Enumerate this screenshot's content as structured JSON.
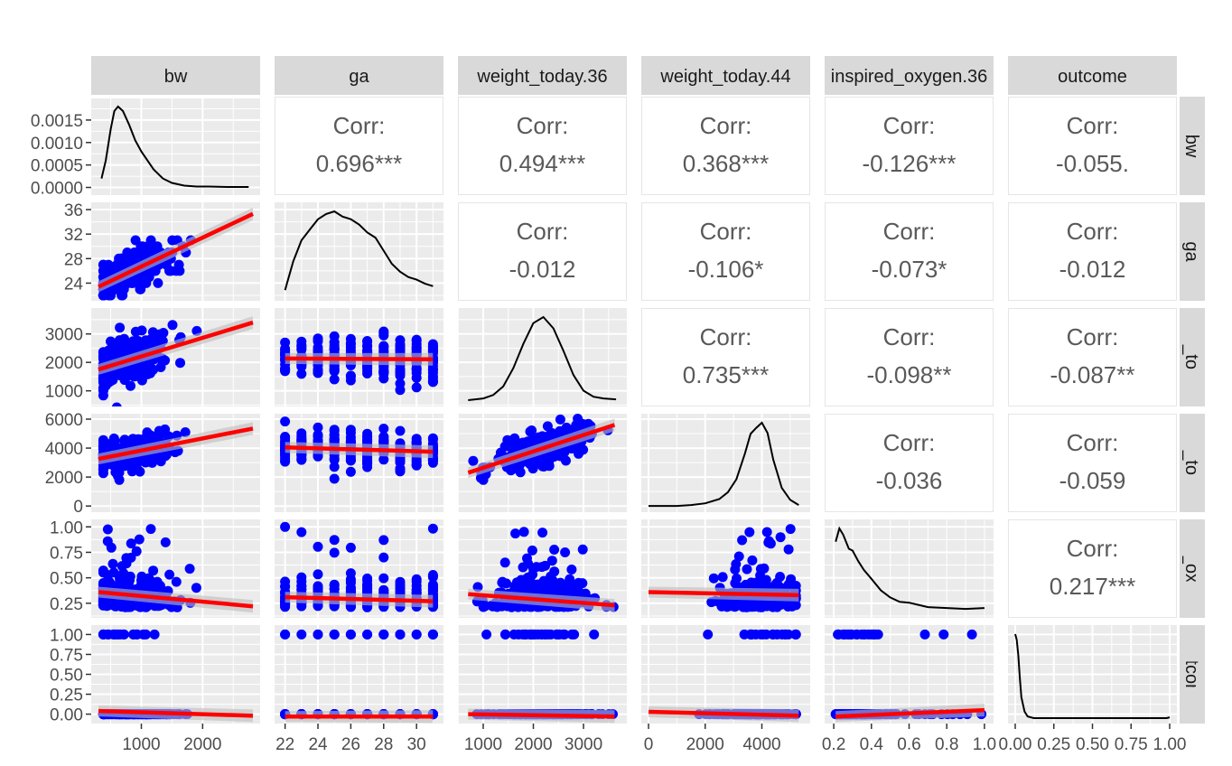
{
  "variables": [
    "bw",
    "ga",
    "weight_today.36",
    "weight_today.44",
    "inspired_oxygen.36",
    "outcome"
  ],
  "colors": {
    "panel_bg": "#EBEBEB",
    "grid": "#FFFFFF",
    "strip_bg": "#D9D9D9",
    "points": "#0000FF",
    "fit_line": "#FF0000",
    "ci_band": "#BDBDBD",
    "density_line": "#000000",
    "corr_text": "#595959",
    "tick_text": "#4D4D4D"
  },
  "chart_data": {
    "type": "scatter",
    "layout": "pairs-matrix",
    "lower": "scatter points with red linear fit and grey confidence band",
    "diagonal": "density curve",
    "upper": "correlation text",
    "corr_label": "Corr:",
    "correlations": [
      {
        "row": "bw",
        "col": "ga",
        "value": "0.696***"
      },
      {
        "row": "bw",
        "col": "weight_today.36",
        "value": "0.494***"
      },
      {
        "row": "bw",
        "col": "weight_today.44",
        "value": "0.368***"
      },
      {
        "row": "bw",
        "col": "inspired_oxygen.36",
        "value": "-0.126***"
      },
      {
        "row": "bw",
        "col": "outcome",
        "value": "-0.055."
      },
      {
        "row": "ga",
        "col": "weight_today.36",
        "value": "-0.012"
      },
      {
        "row": "ga",
        "col": "weight_today.44",
        "value": "-0.106*"
      },
      {
        "row": "ga",
        "col": "inspired_oxygen.36",
        "value": "-0.073*"
      },
      {
        "row": "ga",
        "col": "outcome",
        "value": "-0.012"
      },
      {
        "row": "weight_today.36",
        "col": "weight_today.44",
        "value": "0.735***"
      },
      {
        "row": "weight_today.36",
        "col": "inspired_oxygen.36",
        "value": "-0.098**"
      },
      {
        "row": "weight_today.36",
        "col": "outcome",
        "value": "-0.087**"
      },
      {
        "row": "weight_today.44",
        "col": "inspired_oxygen.36",
        "value": "-0.036"
      },
      {
        "row": "weight_today.44",
        "col": "outcome",
        "value": "-0.059"
      },
      {
        "row": "inspired_oxygen.36",
        "col": "outcome",
        "value": "0.217***"
      }
    ],
    "axes": {
      "bw": {
        "range": [
          300,
          2820
        ],
        "ticks": [
          1000,
          2000
        ],
        "tick_labels": [
          "1000",
          "2000"
        ]
      },
      "ga": {
        "range": [
          21.8,
          31.2
        ],
        "ticks": [
          22,
          24,
          26,
          28,
          30
        ],
        "tick_labels": [
          "22",
          "24",
          "26",
          "28",
          "30"
        ]
      },
      "weight_today.36": {
        "range": [
          640,
          3720
        ],
        "ticks": [
          1000,
          2000,
          3000
        ],
        "tick_labels": [
          "1000",
          "2000",
          "3000"
        ]
      },
      "weight_today.44": {
        "range": [
          0,
          5450
        ],
        "ticks": [
          0,
          2000,
          4000
        ],
        "tick_labels": [
          "0",
          "2000",
          "4000"
        ]
      },
      "inspired_oxygen.36": {
        "range": [
          0.19,
          1.01
        ],
        "ticks": [
          0.2,
          0.4,
          0.6,
          0.8,
          1.0
        ],
        "tick_labels": [
          "0.2",
          "0.4",
          "0.6",
          "0.8",
          "1.0"
        ]
      },
      "outcome": {
        "range": [
          0,
          1
        ],
        "ticks": [
          0,
          0.25,
          0.5,
          0.75,
          1.0
        ],
        "tick_labels": [
          "0.00",
          "0.25",
          "0.50",
          "0.75",
          "1.00"
        ]
      }
    },
    "row1_density_axis": {
      "range": [
        -5e-05,
        0.0019
      ],
      "ticks": [
        0,
        0.0005,
        0.001,
        0.0015
      ],
      "tick_labels": [
        "0.0000",
        "0.0005",
        "0.0010",
        "0.0015"
      ]
    },
    "row_axes": {
      "ga": {
        "range": [
          22,
          36.3
        ],
        "ticks": [
          24,
          28,
          32,
          36
        ],
        "tick_labels": [
          "24",
          "28",
          "32",
          "36"
        ]
      },
      "weight_today.36": {
        "range": [
          640,
          3720
        ],
        "ticks": [
          1000,
          2000,
          3000
        ],
        "tick_labels": [
          "1000",
          "2000",
          "3000"
        ]
      },
      "weight_today.44": {
        "range": [
          -50,
          6000
        ],
        "ticks": [
          0,
          2000,
          4000,
          6000
        ],
        "tick_labels": [
          "0",
          "2000",
          "4000",
          "6000"
        ]
      },
      "inspired_oxygen.36": {
        "range": [
          0.16,
          1.02
        ],
        "ticks": [
          0.25,
          0.5,
          0.75,
          1.0
        ],
        "tick_labels": [
          "0.25",
          "0.50",
          "0.75",
          "1.00"
        ]
      },
      "outcome": {
        "range": [
          -0.05,
          1.05
        ],
        "ticks": [
          0,
          0.25,
          0.5,
          0.75,
          1.0
        ],
        "tick_labels": [
          "0.00",
          "0.25",
          "0.50",
          "0.75",
          "1.00"
        ]
      }
    },
    "densities": {
      "bw": {
        "x": [
          350,
          420,
          500,
          560,
          620,
          700,
          800,
          900,
          1000,
          1100,
          1200,
          1350,
          1500,
          1700,
          1900,
          2100,
          2400,
          2750
        ],
        "y": [
          0.0002,
          0.0006,
          0.0013,
          0.0017,
          0.0018,
          0.0017,
          0.0014,
          0.00105,
          0.0008,
          0.0006,
          0.0004,
          0.0002,
          0.0001,
          4e-05,
          2e-05,
          2e-05,
          1e-05,
          1e-05
        ]
      },
      "ga": {
        "x": [
          22,
          22.5,
          23,
          23.5,
          24,
          24.5,
          25,
          25.5,
          26,
          26.5,
          27,
          27.5,
          28,
          28.5,
          29,
          29.5,
          30,
          30.5,
          31
        ],
        "y": [
          0.02,
          0.13,
          0.21,
          0.25,
          0.29,
          0.31,
          0.32,
          0.3,
          0.29,
          0.27,
          0.24,
          0.22,
          0.17,
          0.12,
          0.09,
          0.07,
          0.06,
          0.045,
          0.035
        ]
      },
      "weight_today.36": {
        "x": [
          700,
          1000,
          1200,
          1400,
          1600,
          1800,
          2000,
          2200,
          2400,
          2600,
          2800,
          3000,
          3200,
          3400,
          3650
        ],
        "y": [
          0.01,
          0.03,
          0.07,
          0.17,
          0.38,
          0.66,
          0.9,
          0.97,
          0.84,
          0.58,
          0.3,
          0.12,
          0.05,
          0.03,
          0.02
        ]
      },
      "weight_today.44": {
        "x": [
          0,
          500,
          1000,
          1500,
          2000,
          2500,
          2800,
          3100,
          3400,
          3600,
          3800,
          4000,
          4200,
          4400,
          4700,
          5000,
          5300
        ],
        "y": [
          0.01,
          0.01,
          0.01,
          0.02,
          0.04,
          0.09,
          0.17,
          0.32,
          0.62,
          0.85,
          0.92,
          0.98,
          0.86,
          0.55,
          0.22,
          0.08,
          0.02
        ]
      },
      "inspired_oxygen.36": {
        "x": [
          0.21,
          0.23,
          0.25,
          0.28,
          0.3,
          0.33,
          0.36,
          0.4,
          0.45,
          0.5,
          0.55,
          0.6,
          0.7,
          0.8,
          0.9,
          1.0
        ],
        "y": [
          0.8,
          0.95,
          0.88,
          0.72,
          0.7,
          0.58,
          0.48,
          0.38,
          0.25,
          0.17,
          0.12,
          0.11,
          0.06,
          0.05,
          0.04,
          0.05
        ]
      },
      "outcome": {
        "x": [
          0,
          0.01,
          0.02,
          0.03,
          0.04,
          0.06,
          0.08,
          0.12,
          0.3,
          0.6,
          0.98,
          1.0
        ],
        "y": [
          1.0,
          0.93,
          0.75,
          0.48,
          0.25,
          0.08,
          0.02,
          0.0,
          0.0,
          0.0,
          0.0,
          0.01
        ]
      }
    },
    "fits": [
      {
        "row": "ga",
        "col": "bw",
        "x": [
          300,
          2820
        ],
        "y": [
          23.4,
          35.3
        ]
      },
      {
        "row": "weight_today.36",
        "col": "bw",
        "x": [
          300,
          2820
        ],
        "y": [
          1750,
          3400
        ]
      },
      {
        "row": "weight_today.36",
        "col": "ga",
        "x": [
          22,
          31
        ],
        "y": [
          2135,
          2110
        ]
      },
      {
        "row": "weight_today.44",
        "col": "bw",
        "x": [
          300,
          2820
        ],
        "y": [
          3250,
          5350
        ]
      },
      {
        "row": "weight_today.44",
        "col": "ga",
        "x": [
          22,
          31
        ],
        "y": [
          4050,
          3750
        ]
      },
      {
        "row": "weight_today.44",
        "col": "weight_today.36",
        "x": [
          700,
          3620
        ],
        "y": [
          2300,
          5600
        ]
      },
      {
        "row": "inspired_oxygen.36",
        "col": "bw",
        "x": [
          300,
          2820
        ],
        "y": [
          0.36,
          0.22
        ]
      },
      {
        "row": "inspired_oxygen.36",
        "col": "ga",
        "x": [
          22,
          31
        ],
        "y": [
          0.31,
          0.27
        ]
      },
      {
        "row": "inspired_oxygen.36",
        "col": "weight_today.36",
        "x": [
          700,
          3620
        ],
        "y": [
          0.34,
          0.23
        ]
      },
      {
        "row": "inspired_oxygen.36",
        "col": "weight_today.44",
        "x": [
          0,
          5300
        ],
        "y": [
          0.36,
          0.33
        ]
      },
      {
        "row": "outcome",
        "col": "bw",
        "x": [
          300,
          2820
        ],
        "y": [
          0.04,
          -0.02
        ]
      },
      {
        "row": "outcome",
        "col": "ga",
        "x": [
          22,
          31
        ],
        "y": [
          -0.03,
          -0.03
        ]
      },
      {
        "row": "outcome",
        "col": "weight_today.36",
        "x": [
          700,
          3620
        ],
        "y": [
          0.0,
          -0.03
        ]
      },
      {
        "row": "outcome",
        "col": "weight_today.44",
        "x": [
          0,
          5300
        ],
        "y": [
          0.03,
          -0.02
        ]
      },
      {
        "row": "outcome",
        "col": "inspired_oxygen.36",
        "x": [
          0.21,
          1.0
        ],
        "y": [
          -0.03,
          0.05
        ]
      }
    ],
    "points": {
      "bw": [
        420,
        500,
        560,
        600,
        650,
        700,
        720,
        760,
        800,
        850,
        900,
        950,
        1000,
        1050,
        1100,
        1150,
        1200,
        1300,
        1400,
        1500,
        1600,
        1700,
        1800,
        1900,
        2000,
        2100,
        2200,
        2350,
        2500,
        2650,
        2750
      ],
      "ga_rowvals": [
        24,
        26,
        25,
        27,
        26,
        28,
        27,
        29,
        28,
        30,
        27,
        29,
        30,
        29,
        28,
        30,
        31,
        30,
        29,
        31,
        30,
        31,
        30,
        31,
        31,
        31,
        30,
        31,
        31,
        30,
        31
      ],
      "ga_levels": [
        22,
        23,
        24,
        25,
        26,
        27,
        28,
        29,
        30,
        31
      ]
    },
    "matrix_size": 6
  }
}
